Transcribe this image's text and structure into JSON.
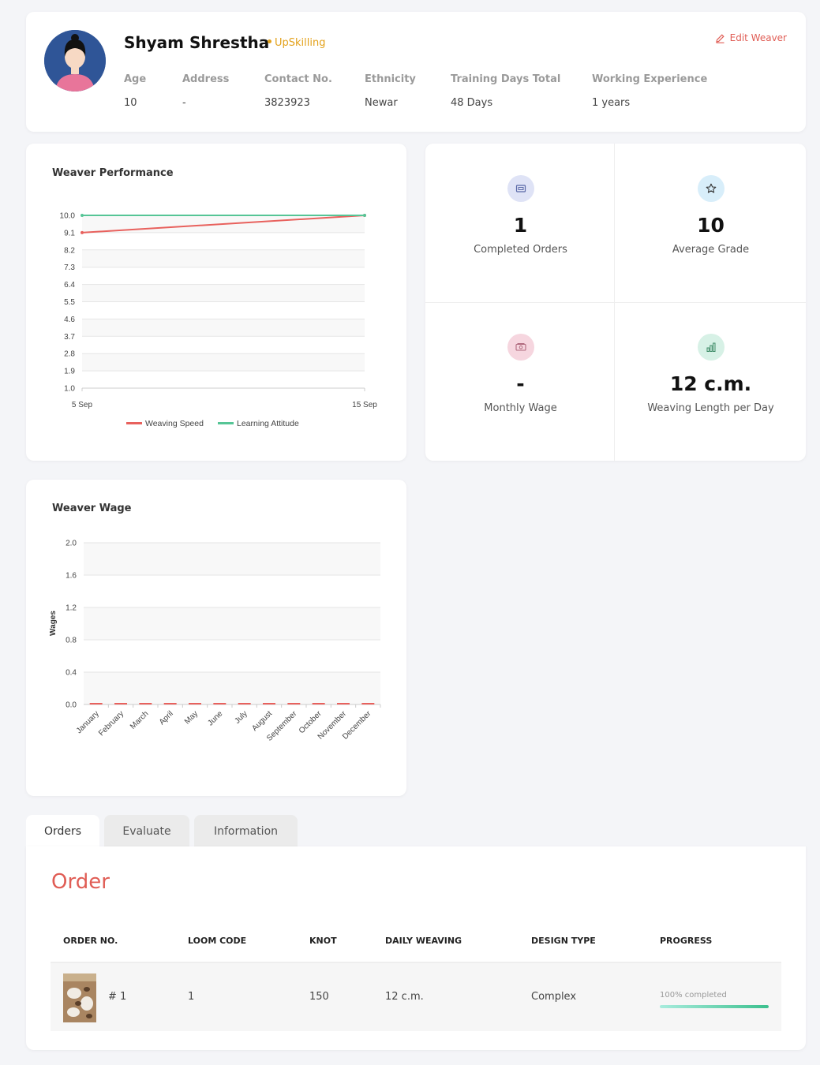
{
  "profile": {
    "name": "Shyam Shrestha",
    "status": "UpSkilling",
    "edit_label": "Edit Weaver",
    "fields": [
      {
        "label": "Age",
        "value": "10"
      },
      {
        "label": "Address",
        "value": "-"
      },
      {
        "label": "Contact No.",
        "value": "3823923"
      },
      {
        "label": "Ethnicity",
        "value": "Newar"
      },
      {
        "label": "Training Days Total",
        "value": "48 Days"
      },
      {
        "label": "Working Experience",
        "value": "1 years"
      }
    ]
  },
  "performance": {
    "title": "Weaver Performance",
    "legend": [
      "Weaving Speed",
      "Learning Attitude"
    ]
  },
  "stats": [
    {
      "value": "1",
      "label": "Completed Orders",
      "icon": "orders-icon",
      "bg": "#dfe3f6",
      "fg": "#5b6aa8"
    },
    {
      "value": "10",
      "label": "Average Grade",
      "icon": "star-icon",
      "bg": "#d8eefa",
      "fg": "#333333"
    },
    {
      "value": "-",
      "label": "Monthly Wage",
      "icon": "wage-icon",
      "bg": "#f6d6df",
      "fg": "#b06a7e"
    },
    {
      "value": "12 c.m.",
      "label": "Weaving Length per Day",
      "icon": "bar-chart-icon",
      "bg": "#d7f1e6",
      "fg": "#3c8a66"
    }
  ],
  "wage": {
    "title": "Weaver Wage"
  },
  "chart_data": [
    {
      "type": "line",
      "x": [
        "5 Sep",
        "15 Sep"
      ],
      "series": [
        {
          "name": "Weaving Speed",
          "values": [
            9.1,
            10.0
          ],
          "color": "#e8615d"
        },
        {
          "name": "Learning Attitude",
          "values": [
            10.0,
            10.0
          ],
          "color": "#56c596"
        }
      ],
      "yticks": [
        "10.0",
        "9.1",
        "8.2",
        "7.3",
        "6.4",
        "5.5",
        "4.6",
        "3.7",
        "2.8",
        "1.9",
        "1.0"
      ],
      "ylim": [
        1.0,
        10.0
      ],
      "legend_position": "bottom"
    },
    {
      "type": "bar",
      "categories": [
        "January",
        "February",
        "March",
        "April",
        "May",
        "June",
        "July",
        "August",
        "September",
        "October",
        "November",
        "December"
      ],
      "values": [
        0,
        0,
        0,
        0,
        0,
        0,
        0,
        0,
        0,
        0,
        0,
        0
      ],
      "ylabel": "Wages",
      "yticks": [
        "2.0",
        "1.6",
        "1.2",
        "0.8",
        "0.4",
        "0.0"
      ],
      "ylim": [
        0,
        2.0
      ],
      "color": "#e8615d"
    }
  ],
  "tabs": [
    {
      "label": "Orders",
      "active": true
    },
    {
      "label": "Evaluate",
      "active": false
    },
    {
      "label": "Information",
      "active": false
    }
  ],
  "orders": {
    "title": "Order",
    "columns": [
      "ORDER NO.",
      "LOOM CODE",
      "KNOT",
      "DAILY WEAVING",
      "DESIGN TYPE",
      "PROGRESS"
    ],
    "rows": [
      {
        "order_no": "# 1",
        "loom_code": "1",
        "knot": "150",
        "daily_weaving": "12 c.m.",
        "design_type": "Complex",
        "progress_text": "100% completed",
        "progress": 1.0
      }
    ]
  }
}
